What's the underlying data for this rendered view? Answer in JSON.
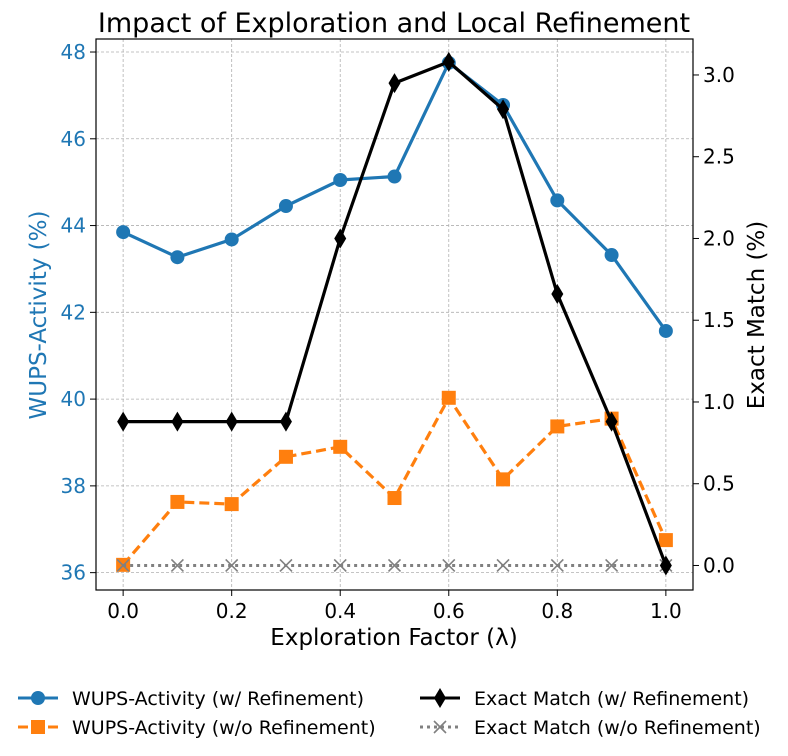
{
  "chart_data": {
    "type": "line",
    "title": "Impact of Exploration and Local Refinement",
    "xlabel": "Exploration Factor (λ)",
    "ylabel_left": "WUPS-Activity (%)",
    "ylabel_right": "Exact Match (%)",
    "x": [
      0.0,
      0.1,
      0.2,
      0.3,
      0.4,
      0.5,
      0.6,
      0.7,
      0.8,
      0.9,
      1.0
    ],
    "xlim": [
      -0.05,
      1.05
    ],
    "ylim_left": [
      35.6,
      48.3
    ],
    "ylim_right": [
      -0.15,
      3.22
    ],
    "x_ticks": [
      "0.0",
      "0.2",
      "0.4",
      "0.6",
      "0.8",
      "1.0"
    ],
    "y_ticks_left": [
      "36",
      "38",
      "40",
      "42",
      "44",
      "46",
      "48"
    ],
    "y_ticks_right": [
      "0.0",
      "0.5",
      "1.0",
      "1.5",
      "2.0",
      "2.5",
      "3.0"
    ],
    "grid": true,
    "legend_position": "bottom",
    "series": [
      {
        "name": "WUPS-Activity (w/ Refinement)",
        "axis": "left",
        "color": "#1f77b4",
        "style": "solid",
        "marker": "circle",
        "values": [
          43.85,
          43.27,
          43.68,
          44.45,
          45.05,
          45.13,
          47.75,
          46.78,
          44.58,
          43.32,
          41.57
        ]
      },
      {
        "name": "WUPS-Activity (w/o Refinement)",
        "axis": "left",
        "color": "#ff7f0e",
        "style": "dashed",
        "marker": "square",
        "values": [
          36.18,
          37.63,
          37.58,
          38.67,
          38.9,
          37.72,
          40.03,
          38.15,
          39.37,
          39.55,
          36.75
        ]
      },
      {
        "name": "Exact Match (w/ Refinement)",
        "axis": "right",
        "color": "#000000",
        "style": "solid",
        "marker": "diamond",
        "values": [
          0.88,
          0.88,
          0.88,
          0.88,
          2.0,
          2.95,
          3.08,
          2.79,
          1.66,
          0.88,
          0.0
        ]
      },
      {
        "name": "Exact Match (w/o Refinement)",
        "axis": "right",
        "color": "#808080",
        "style": "dotted",
        "marker": "x",
        "values": [
          0.0,
          0.0,
          0.0,
          0.0,
          0.0,
          0.0,
          0.0,
          0.0,
          0.0,
          0.0,
          0.0
        ]
      }
    ]
  }
}
